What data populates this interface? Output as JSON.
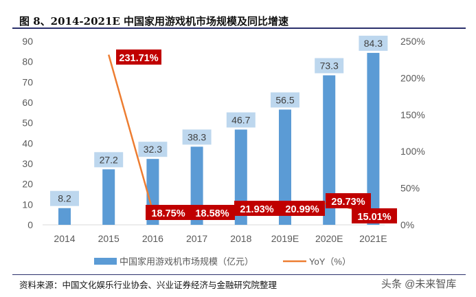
{
  "title": "图 8、2014-2021E 中国家用游戏机市场规模及同比增速",
  "source": "资料来源：中国文化娱乐行业协会、兴业证券经济与金融研究院整理",
  "watermark": "头条 @未来智库",
  "chart_data": {
    "type": "bar+line",
    "categories": [
      "2014",
      "2015",
      "2016",
      "2017",
      "2018",
      "2019E",
      "2020E",
      "2021E"
    ],
    "series": [
      {
        "name": "中国家用游戏机市场规模（亿元）",
        "type": "bar",
        "axis": "left",
        "color": "#5B9BD5",
        "values": [
          8.2,
          27.2,
          32.3,
          38.3,
          46.7,
          56.5,
          73.3,
          84.3
        ],
        "labels": [
          "8.2",
          "27.2",
          "32.3",
          "38.3",
          "46.7",
          "56.5",
          "73.3",
          "84.3"
        ]
      },
      {
        "name": "YoY（%）",
        "type": "line",
        "axis": "right",
        "color": "#ED7D31",
        "values": [
          null,
          231.71,
          18.75,
          18.58,
          21.93,
          20.99,
          29.73,
          15.01
        ],
        "labels": [
          "",
          "231.71%",
          "18.75%",
          "18.58%",
          "21.93%",
          "20.99%",
          "29.73%",
          "15.01%"
        ]
      }
    ],
    "ylim": [
      0,
      90
    ],
    "yticks": [
      "0",
      "10",
      "20",
      "30",
      "40",
      "50",
      "60",
      "70",
      "80",
      "90"
    ],
    "y2lim": [
      0,
      250
    ],
    "y2ticks": [
      "0%",
      "50%",
      "100%",
      "150%",
      "200%",
      "250%"
    ],
    "grid": false,
    "legend": "bottom",
    "bar_label_bg": "#BDD7EE",
    "line_label_bg": "#C00000"
  }
}
